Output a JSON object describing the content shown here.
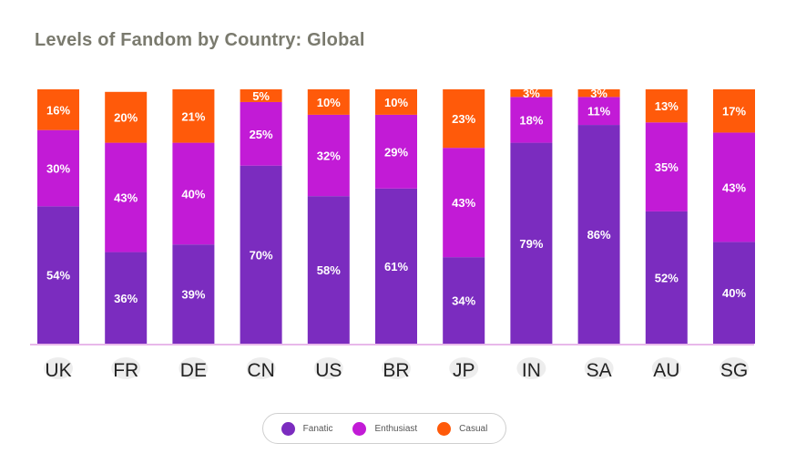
{
  "chart_data": {
    "type": "bar",
    "stacked": true,
    "title": "Levels of Fandom by Country: Global",
    "categories": [
      "UK",
      "FR",
      "DE",
      "CN",
      "US",
      "BR",
      "JP",
      "IN",
      "SA",
      "AU",
      "SG"
    ],
    "series": [
      {
        "name": "Fanatic",
        "color": "#7b2cbf",
        "values": [
          54,
          36,
          39,
          70,
          58,
          61,
          34,
          79,
          86,
          52,
          40
        ]
      },
      {
        "name": "Enthusiast",
        "color": "#c21bd6",
        "values": [
          30,
          43,
          40,
          25,
          32,
          29,
          43,
          18,
          11,
          35,
          43
        ]
      },
      {
        "name": "Casual",
        "color": "#ff5a0a",
        "values": [
          16,
          20,
          21,
          5,
          10,
          10,
          23,
          3,
          3,
          13,
          17
        ]
      }
    ],
    "value_suffix": "%",
    "ylim": [
      0,
      100
    ],
    "grid": false,
    "legend_position": "bottom-center",
    "baseline_color": "#e8b8ea"
  }
}
